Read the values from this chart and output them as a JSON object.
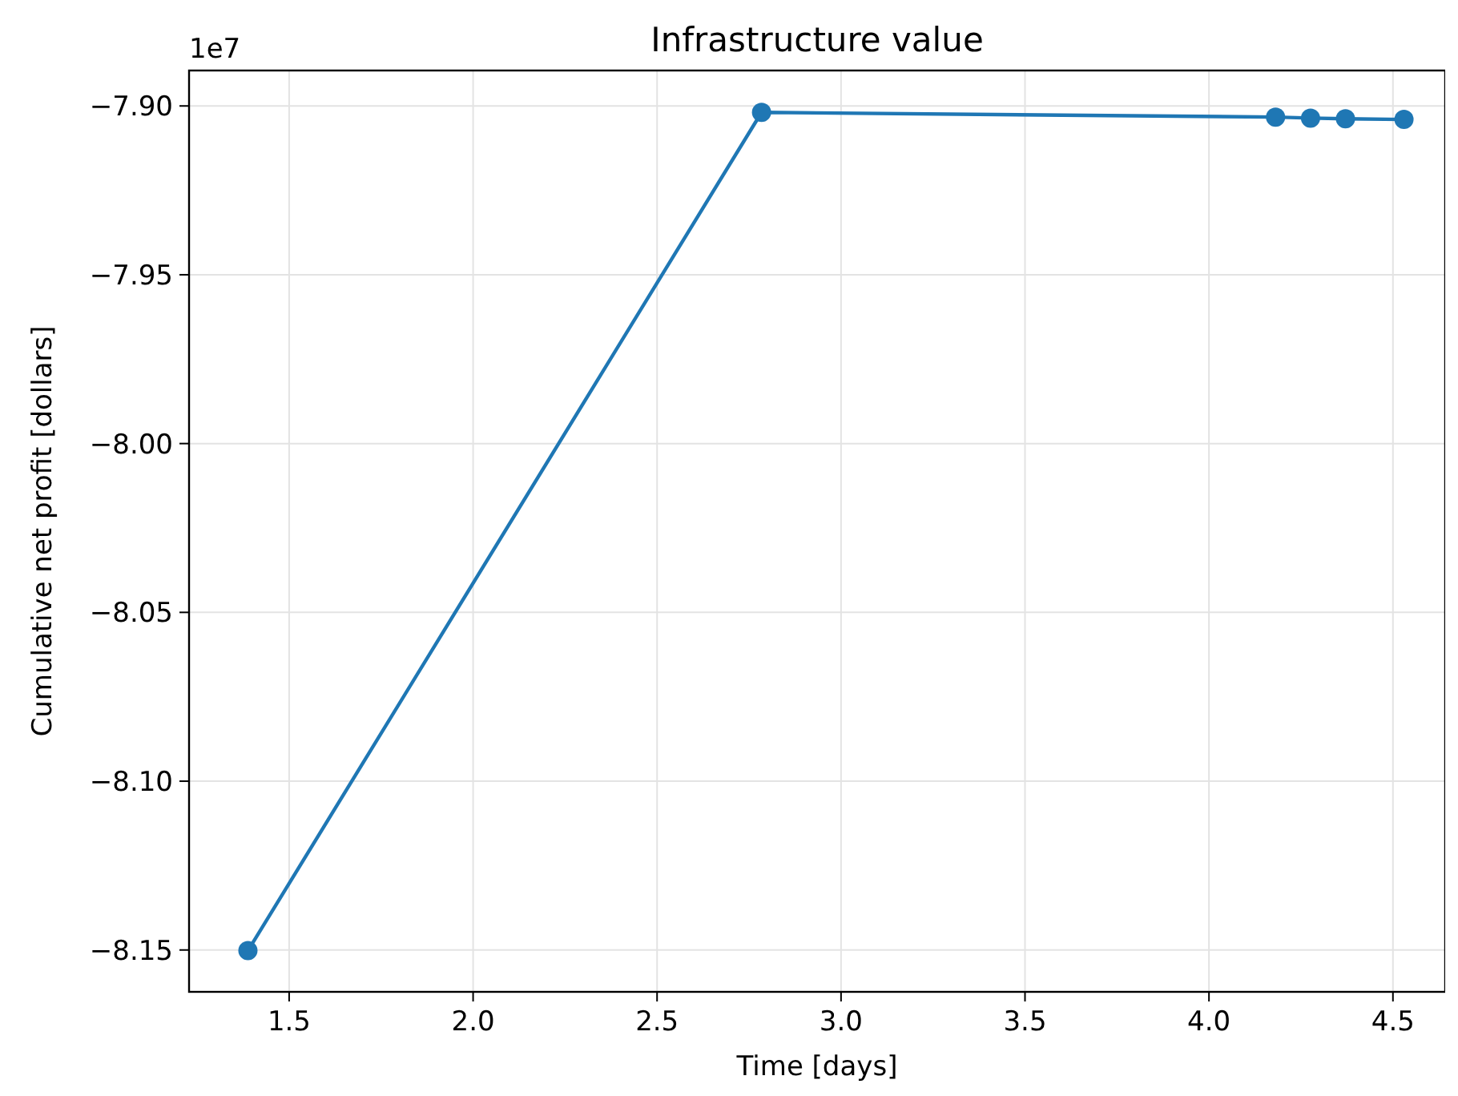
{
  "chart_data": {
    "type": "line",
    "title": "Infrastructure value",
    "xlabel": "Time [days]",
    "ylabel": "Cumulative net profit [dollars]",
    "annotations": [
      "1e7"
    ],
    "series": [
      {
        "color": "#1f77b4",
        "x": [
          1.388,
          2.784,
          4.181,
          4.276,
          4.371,
          4.53
        ],
        "values": [
          -8.1502,
          -7.9019,
          -7.9033,
          -7.9036,
          -7.9038,
          -7.904
        ]
      }
    ],
    "xlim": [
      1.228,
      4.642
    ],
    "xticks": [
      {
        "value": 1.5,
        "label": "1.5"
      },
      {
        "value": 2,
        "label": "2.0"
      },
      {
        "value": 2.5,
        "label": "2.5"
      },
      {
        "value": 3,
        "label": "3.0"
      },
      {
        "value": 3.5,
        "label": "3.5"
      },
      {
        "value": 4,
        "label": "4.0"
      },
      {
        "value": 4.5,
        "label": "4.5"
      }
    ],
    "ylim": [
      -8.1624,
      -7.8895
    ],
    "yticks": [
      {
        "value": -8.15,
        "label": "−8.15"
      },
      {
        "value": -8.1,
        "label": "−8.10"
      },
      {
        "value": -8.05,
        "label": "−8.05"
      },
      {
        "value": -8,
        "label": "−8.00"
      },
      {
        "value": -7.95,
        "label": "−7.95"
      },
      {
        "value": -7.9,
        "label": "−7.90"
      }
    ],
    "grid": true,
    "marker": "circle",
    "line_style": "solid"
  }
}
